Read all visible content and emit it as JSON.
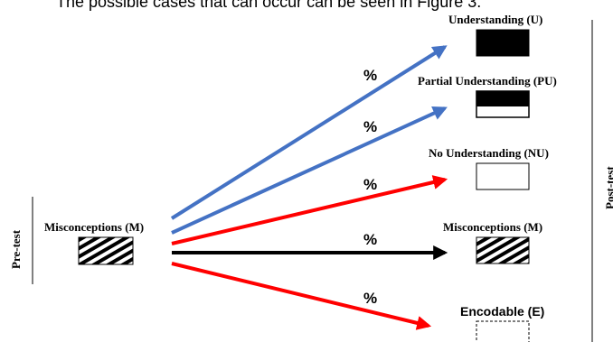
{
  "caption": "The possible cases that can occur can be seen in Figure 3.",
  "pretest": {
    "side_label": "Pre-test",
    "source_label": "Misconceptions (M)"
  },
  "posttest": {
    "side_label": "Post-test"
  },
  "categories": [
    {
      "key": "U",
      "label": "Understanding (U)",
      "percent_label": "%",
      "arrow_color": "#4472c4",
      "box_fill": "solid-black"
    },
    {
      "key": "PU",
      "label": "Partial Understanding (PU)",
      "percent_label": "%",
      "arrow_color": "#4472c4",
      "box_fill": "top-half-black"
    },
    {
      "key": "NU",
      "label": "No Understanding (NU)",
      "percent_label": "%",
      "arrow_color": "#ff0000",
      "box_fill": "white"
    },
    {
      "key": "M",
      "label": "Misconceptions (M)",
      "percent_label": "%",
      "arrow_color": "#000000",
      "box_fill": "hatched"
    },
    {
      "key": "E",
      "label": "Encodable (E)",
      "percent_label": "%",
      "arrow_color": "#ff0000",
      "box_fill": "dashed-white"
    }
  ]
}
